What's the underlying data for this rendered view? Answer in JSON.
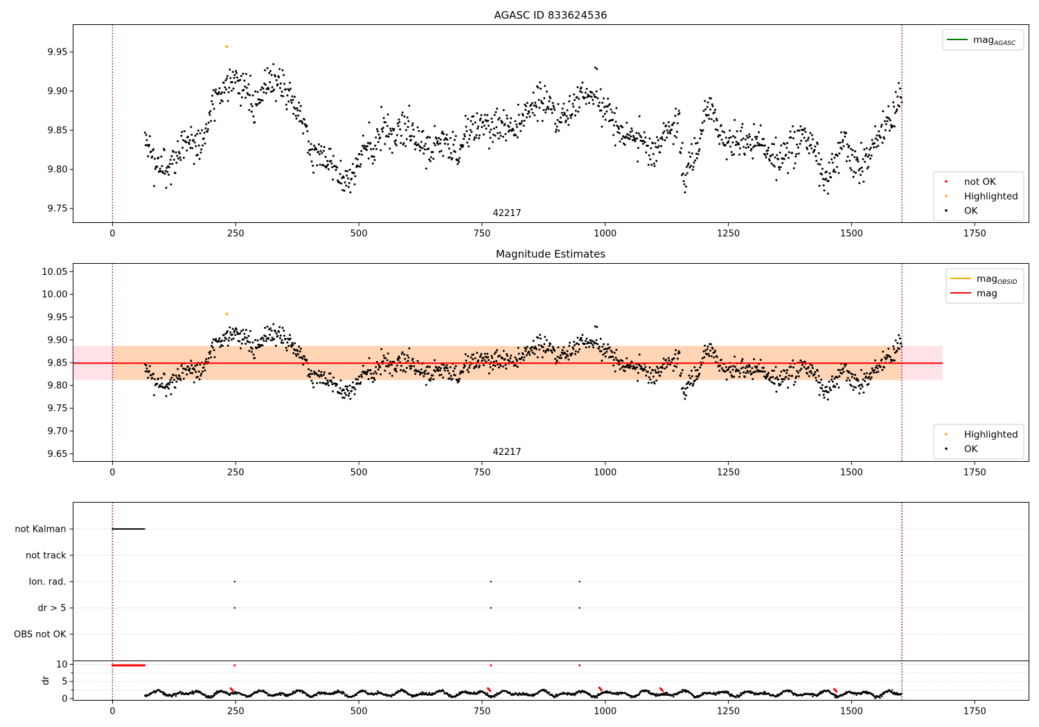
{
  "chart_data": [
    {
      "type": "scatter",
      "title": "AGASC ID 833624536",
      "annotation": "42217",
      "xlim": [
        -80,
        1860
      ],
      "ylim": [
        9.732,
        9.985
      ],
      "xticks": [
        0,
        250,
        500,
        750,
        1000,
        1250,
        1500,
        1750
      ],
      "yticks": [
        9.75,
        9.8,
        9.85,
        9.9,
        9.95
      ],
      "grid": false,
      "vlines": [
        0,
        1602
      ],
      "legends": [
        {
          "placement": "upper-right",
          "entries": [
            {
              "label": "mag",
              "sub": "AGASC",
              "kind": "line",
              "color": "#008000"
            }
          ]
        },
        {
          "placement": "lower-right",
          "entries": [
            {
              "label": "not OK",
              "kind": "dot",
              "color": "#ff0000"
            },
            {
              "label": "Highlighted",
              "kind": "dot",
              "color": "#ffa500"
            },
            {
              "label": "OK",
              "kind": "dot",
              "color": "#000000"
            }
          ]
        }
      ],
      "highlighted_points": [
        {
          "x": 232,
          "y": 9.957
        }
      ],
      "light_curve_anchors": [
        [
          66,
          9.83
        ],
        [
          90,
          9.805
        ],
        [
          115,
          9.8
        ],
        [
          150,
          9.84
        ],
        [
          180,
          9.83
        ],
        [
          205,
          9.885
        ],
        [
          232,
          9.905
        ],
        [
          255,
          9.915
        ],
        [
          275,
          9.895
        ],
        [
          290,
          9.88
        ],
        [
          310,
          9.905
        ],
        [
          340,
          9.91
        ],
        [
          360,
          9.895
        ],
        [
          385,
          9.87
        ],
        [
          400,
          9.82
        ],
        [
          425,
          9.82
        ],
        [
          450,
          9.81
        ],
        [
          470,
          9.79
        ],
        [
          490,
          9.79
        ],
        [
          510,
          9.825
        ],
        [
          540,
          9.835
        ],
        [
          560,
          9.845
        ],
        [
          600,
          9.855
        ],
        [
          625,
          9.84
        ],
        [
          645,
          9.82
        ],
        [
          660,
          9.84
        ],
        [
          690,
          9.83
        ],
        [
          705,
          9.81
        ],
        [
          720,
          9.85
        ],
        [
          750,
          9.86
        ],
        [
          790,
          9.855
        ],
        [
          815,
          9.85
        ],
        [
          850,
          9.88
        ],
        [
          880,
          9.89
        ],
        [
          900,
          9.865
        ],
        [
          920,
          9.87
        ],
        [
          950,
          9.895
        ],
        [
          980,
          9.895
        ],
        [
          1000,
          9.875
        ],
        [
          1020,
          9.86
        ],
        [
          1045,
          9.84
        ],
        [
          1070,
          9.84
        ],
        [
          1100,
          9.82
        ],
        [
          1130,
          9.855
        ],
        [
          1150,
          9.86
        ],
        [
          1160,
          9.79
        ],
        [
          1190,
          9.83
        ],
        [
          1210,
          9.885
        ],
        [
          1240,
          9.835
        ],
        [
          1280,
          9.835
        ],
        [
          1320,
          9.83
        ],
        [
          1350,
          9.815
        ],
        [
          1380,
          9.825
        ],
        [
          1400,
          9.84
        ],
        [
          1420,
          9.835
        ],
        [
          1445,
          9.78
        ],
        [
          1460,
          9.8
        ],
        [
          1485,
          9.835
        ],
        [
          1510,
          9.8
        ],
        [
          1530,
          9.815
        ],
        [
          1560,
          9.85
        ],
        [
          1580,
          9.86
        ],
        [
          1595,
          9.895
        ],
        [
          1602,
          9.885
        ]
      ],
      "x_range": [
        66,
        1602
      ],
      "n_points": 1250,
      "scatter": 0.016
    },
    {
      "type": "scatter",
      "title": "Magnitude Estimates",
      "annotation": "42217",
      "xlim": [
        -80,
        1860
      ],
      "ylim": [
        9.633,
        10.068
      ],
      "xticks": [
        0,
        250,
        500,
        750,
        1000,
        1250,
        1500,
        1750
      ],
      "yticks": [
        9.65,
        9.7,
        9.75,
        9.8,
        9.85,
        9.9,
        9.95,
        10.0,
        10.05
      ],
      "grid": false,
      "vlines": [
        0,
        1602
      ],
      "mag_line": {
        "y": 9.849,
        "x0": -80,
        "x1": 1685,
        "color": "#ff0000"
      },
      "mag_band_pink": {
        "y0": 9.812,
        "y1": 9.887,
        "x0": -80,
        "x1": 1685
      },
      "mag_band_orange": {
        "y0": 9.812,
        "y1": 9.887,
        "x0": 0,
        "x1": 1602
      },
      "legends": [
        {
          "placement": "upper-right",
          "entries": [
            {
              "label": "mag",
              "sub": "OBSID",
              "kind": "line",
              "color": "#ffa500"
            },
            {
              "label": "mag",
              "kind": "line",
              "color": "#ff0000"
            }
          ]
        },
        {
          "placement": "lower-right",
          "entries": [
            {
              "label": "Highlighted",
              "kind": "dot",
              "color": "#ffa500"
            },
            {
              "label": "OK",
              "kind": "dot",
              "color": "#000000"
            }
          ]
        }
      ],
      "highlighted_points": [
        {
          "x": 232,
          "y": 9.957
        }
      ]
    },
    {
      "type": "scatter",
      "title": "",
      "xlim": [
        -80,
        1860
      ],
      "xticks": [
        0,
        250,
        500,
        750,
        1000,
        1250,
        1500,
        1750
      ],
      "grid": true,
      "vlines": [
        0,
        1602
      ],
      "flag_rows": [
        "not Kalman",
        "not track",
        "Ion. rad.",
        "dr > 5",
        "OBS not OK"
      ],
      "flags": {
        "not Kalman": {
          "x_from": 0,
          "x_to": 66
        },
        "Ion. rad.": {
          "points": [
            248,
            768,
            948
          ]
        },
        "dr > 5": {
          "points": [
            248,
            768,
            948
          ]
        }
      }
    },
    {
      "type": "scatter",
      "title": "",
      "ylabel": "dr",
      "xlim": [
        -80,
        1860
      ],
      "ylim": [
        -0.5,
        11
      ],
      "xticks": [
        0,
        250,
        500,
        750,
        1000,
        1250,
        1500,
        1750
      ],
      "yticks": [
        0,
        5,
        10
      ],
      "grid": true,
      "vlines": [
        0,
        1602
      ],
      "red_high": {
        "x_from": 0,
        "x_to": 66,
        "y": 9.7,
        "extra": [
          {
            "x": 248,
            "y": 9.7
          },
          {
            "x": 768,
            "y": 9.7
          },
          {
            "x": 948,
            "y": 9.7
          }
        ]
      },
      "red_low": [
        [
          240,
          3.0
        ],
        [
          762,
          3.0
        ],
        [
          988,
          3.2
        ],
        [
          1112,
          3.0
        ],
        [
          1465,
          2.8
        ]
      ],
      "dr_range": [
        66,
        1602
      ],
      "n_points": 1250
    }
  ]
}
